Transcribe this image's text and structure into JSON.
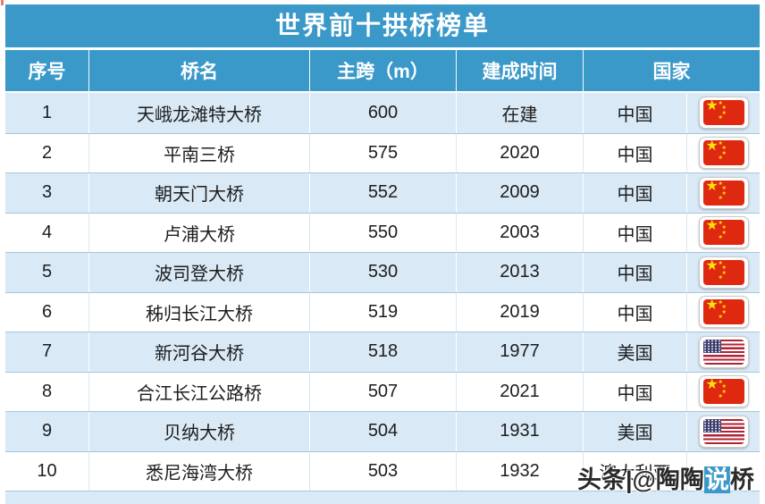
{
  "title": "世界前十拱桥榜单",
  "columns": [
    "序号",
    "桥名",
    "主跨（m）",
    "建成时间",
    "国家"
  ],
  "rows": [
    {
      "rank": "1",
      "name": "天峨龙滩特大桥",
      "span": "600",
      "year": "在建",
      "country": "中国",
      "flag": "cn"
    },
    {
      "rank": "2",
      "name": "平南三桥",
      "span": "575",
      "year": "2020",
      "country": "中国",
      "flag": "cn"
    },
    {
      "rank": "3",
      "name": "朝天门大桥",
      "span": "552",
      "year": "2009",
      "country": "中国",
      "flag": "cn"
    },
    {
      "rank": "4",
      "name": "卢浦大桥",
      "span": "550",
      "year": "2003",
      "country": "中国",
      "flag": "cn"
    },
    {
      "rank": "5",
      "name": "波司登大桥",
      "span": "530",
      "year": "2013",
      "country": "中国",
      "flag": "cn"
    },
    {
      "rank": "6",
      "name": "秭归长江大桥",
      "span": "519",
      "year": "2019",
      "country": "中国",
      "flag": "cn"
    },
    {
      "rank": "7",
      "name": "新河谷大桥",
      "span": "518",
      "year": "1977",
      "country": "美国",
      "flag": "us"
    },
    {
      "rank": "8",
      "name": "合江长江公路桥",
      "span": "507",
      "year": "2021",
      "country": "中国",
      "flag": "cn"
    },
    {
      "rank": "9",
      "name": "贝纳大桥",
      "span": "504",
      "year": "1931",
      "country": "美国",
      "flag": "us"
    },
    {
      "rank": "10",
      "name": "悉尼海湾大桥",
      "span": "503",
      "year": "1932",
      "country": "澳大利亚",
      "flag": "none"
    }
  ],
  "watermark": {
    "prefix": "头条|@陶陶",
    "highlight": "说",
    "suffix": "桥"
  },
  "colors": {
    "header_blue": "#3a99c9",
    "row_alt": "#d9e9f5",
    "flag_red": "#de2910",
    "flag_star": "#fee10a",
    "us_blue": "#3c3b6e",
    "us_red": "#b22234"
  },
  "chart_data": {
    "type": "table",
    "title": "世界前十拱桥榜单",
    "columns": [
      "序号",
      "桥名",
      "主跨（m）",
      "建成时间",
      "国家"
    ],
    "rows": [
      [
        "1",
        "天峨龙滩特大桥",
        "600",
        "在建",
        "中国"
      ],
      [
        "2",
        "平南三桥",
        "575",
        "2020",
        "中国"
      ],
      [
        "3",
        "朝天门大桥",
        "552",
        "2009",
        "中国"
      ],
      [
        "4",
        "卢浦大桥",
        "550",
        "2003",
        "中国"
      ],
      [
        "5",
        "波司登大桥",
        "530",
        "2013",
        "中国"
      ],
      [
        "6",
        "秭归长江大桥",
        "519",
        "2019",
        "中国"
      ],
      [
        "7",
        "新河谷大桥",
        "518",
        "1977",
        "美国"
      ],
      [
        "8",
        "合江长江公路桥",
        "507",
        "2021",
        "中国"
      ],
      [
        "9",
        "贝纳大桥",
        "504",
        "1931",
        "美国"
      ],
      [
        "10",
        "悉尼海湾大桥",
        "503",
        "1932",
        "澳大利亚"
      ]
    ],
    "layout": {
      "striped": true,
      "stripe_start": "row1",
      "header_color": "#3a99c9",
      "stripe_color": "#d9e9f5"
    }
  }
}
